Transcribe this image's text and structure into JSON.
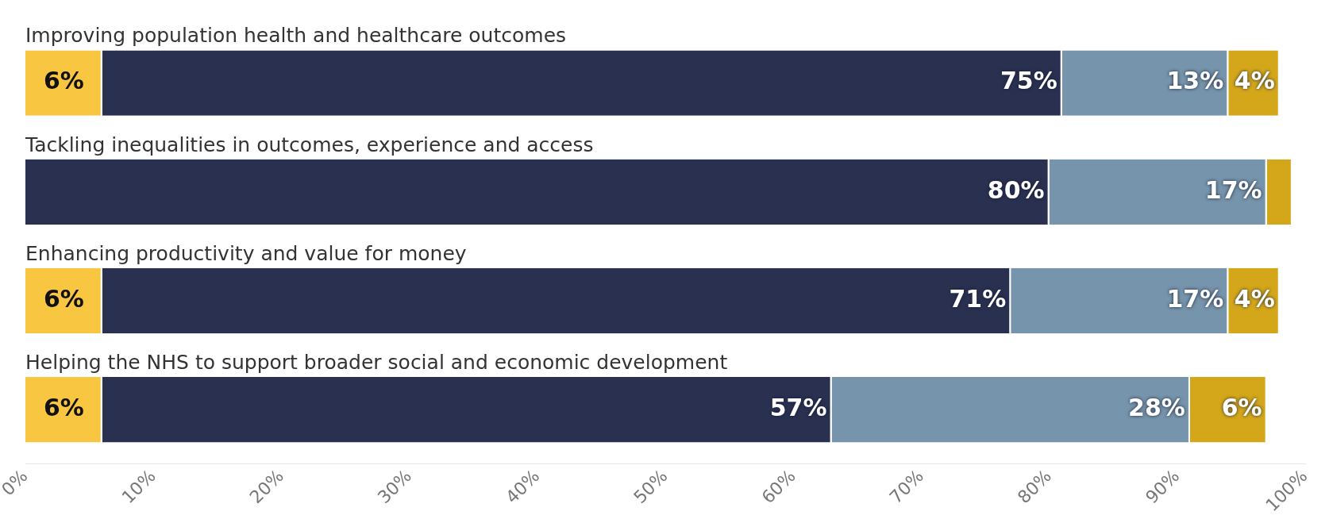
{
  "chart_data": {
    "type": "bar",
    "orientation": "horizontal",
    "stacked": true,
    "legend": false,
    "grid": false,
    "categories": [
      "Improving population health and healthcare outcomes",
      "Tackling inequalities in outcomes, experience and access",
      "Enhancing productivity and value for money",
      "Helping the NHS to support broader social and economic development"
    ],
    "series": [
      {
        "color": "#f9c642",
        "values": [
          6,
          null,
          6,
          6
        ],
        "value_labels": [
          "6%",
          null,
          "6%",
          "6%"
        ]
      },
      {
        "color": "#293050",
        "values": [
          75,
          80,
          71,
          57
        ],
        "value_labels": [
          "75%",
          "80%",
          "71%",
          "57%"
        ]
      },
      {
        "color": "#7694ab",
        "values": [
          13,
          17,
          17,
          28
        ],
        "value_labels": [
          "13%",
          "17%",
          "17%",
          "28%"
        ]
      },
      {
        "color": "#d4a71b",
        "values": [
          4,
          2,
          4,
          6
        ],
        "value_labels": [
          "4%",
          null,
          "4%",
          "6%"
        ]
      }
    ],
    "xlim": [
      0,
      100
    ],
    "xticks": [
      {
        "value": 0,
        "label": "0%"
      },
      {
        "value": 10,
        "label": "10%"
      },
      {
        "value": 20,
        "label": "20%"
      },
      {
        "value": 30,
        "label": "30%"
      },
      {
        "value": 40,
        "label": "40%"
      },
      {
        "value": 50,
        "label": "50%"
      },
      {
        "value": 60,
        "label": "60%"
      },
      {
        "value": 70,
        "label": "70%"
      },
      {
        "value": 80,
        "label": "80%"
      },
      {
        "value": 90,
        "label": "90%"
      },
      {
        "value": 100,
        "label": "100%"
      }
    ]
  }
}
